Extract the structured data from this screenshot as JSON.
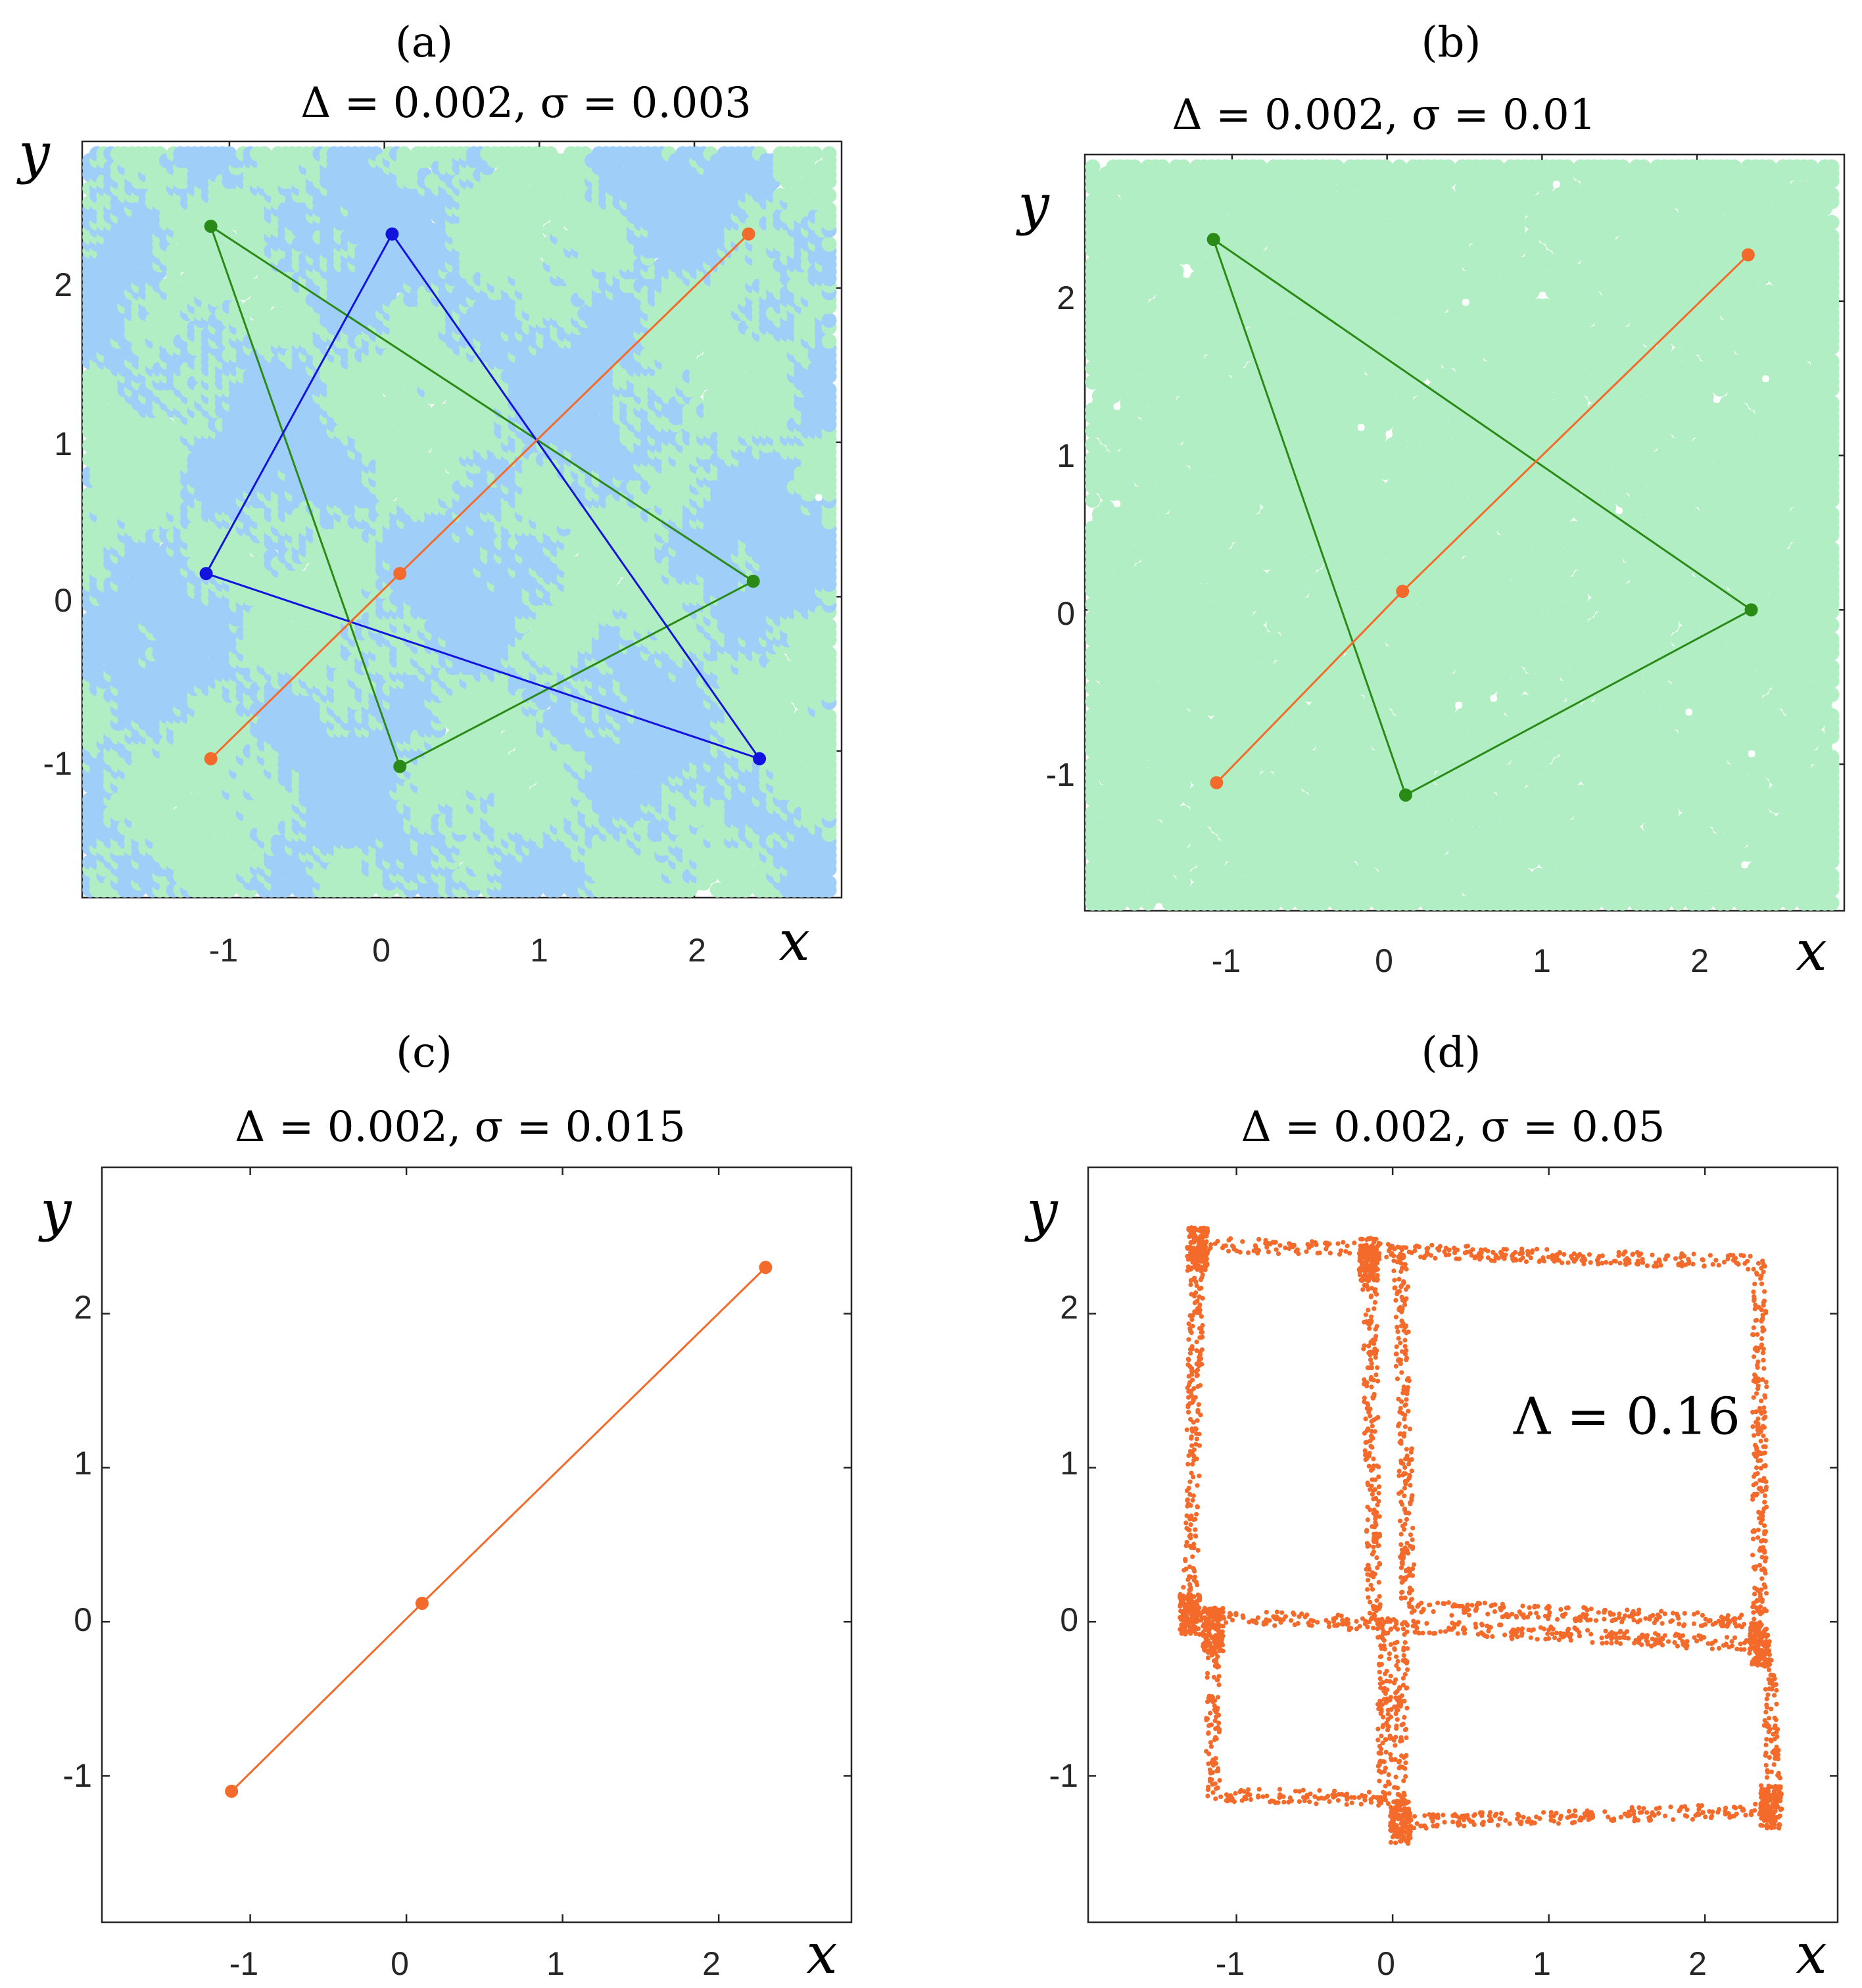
{
  "chart_data": [
    {
      "type": "scatter",
      "panel_label": "(a)",
      "title": "Δ = 0.002,  σ = 0.003",
      "xlabel": "x",
      "ylabel": "y",
      "xlim": [
        -1.95,
        2.95
      ],
      "ylim": [
        -1.95,
        2.95
      ],
      "xticks": [
        "-1",
        "0",
        "1",
        "2"
      ],
      "yticks": [
        "-1",
        "0",
        "1",
        "2"
      ],
      "grid": false,
      "background_points": {
        "colors": [
          "#b2eec3",
          "#9fcff8"
        ],
        "density": 0.9,
        "seed": 7,
        "region": [
          -1.9,
          2.9,
          -1.9,
          2.9
        ]
      },
      "orbits": [
        {
          "color": "#2a8a16",
          "points": [
            [
              -1.12,
              2.4
            ],
            [
              2.38,
              0.1
            ],
            [
              0.1,
              -1.1
            ],
            [
              -1.12,
              2.4
            ]
          ]
        },
        {
          "color": "#1313e0",
          "points": [
            [
              0.05,
              2.35
            ],
            [
              2.42,
              -1.05
            ],
            [
              -1.15,
              0.15
            ],
            [
              0.05,
              2.35
            ]
          ]
        },
        {
          "color": "#f36a2a",
          "points": [
            [
              2.35,
              2.35
            ],
            [
              0.1,
              0.15
            ],
            [
              -1.12,
              -1.05
            ],
            [
              0.1,
              0.15
            ],
            [
              2.35,
              2.35
            ]
          ]
        }
      ],
      "annotation": null
    },
    {
      "type": "scatter",
      "panel_label": "(b)",
      "title": "Δ = 0.002,  σ = 0.01",
      "xlabel": "x",
      "ylabel": "y",
      "xlim": [
        -1.95,
        2.95
      ],
      "ylim": [
        -1.95,
        2.95
      ],
      "xticks": [
        "-1",
        "0",
        "1",
        "2"
      ],
      "yticks": [
        "-1",
        "0",
        "1",
        "2"
      ],
      "grid": false,
      "background_points": {
        "colors": [
          "#b2eec3"
        ],
        "density": 0.82,
        "seed": 13,
        "region": [
          -1.9,
          2.9,
          -1.9,
          2.9
        ]
      },
      "orbits": [
        {
          "color": "#2a8a16",
          "points": [
            [
              -1.12,
              2.4
            ],
            [
              2.35,
              0.0
            ],
            [
              0.12,
              -1.2
            ],
            [
              -1.12,
              2.4
            ]
          ]
        },
        {
          "color": "#f36a2a",
          "points": [
            [
              2.33,
              2.3
            ],
            [
              0.1,
              0.12
            ],
            [
              -1.1,
              -1.12
            ],
            [
              0.1,
              0.12
            ],
            [
              2.33,
              2.3
            ]
          ]
        }
      ],
      "annotation": null
    },
    {
      "type": "line",
      "panel_label": "(c)",
      "title": "Δ = 0.002,  σ = 0.015",
      "xlabel": "x",
      "ylabel": "y",
      "xlim": [
        -1.95,
        2.85
      ],
      "ylim": [
        -1.95,
        2.95
      ],
      "xticks": [
        "-1",
        "0",
        "1",
        "2"
      ],
      "yticks": [
        "-1",
        "0",
        "1",
        "2"
      ],
      "grid": false,
      "background_points": null,
      "orbits": [
        {
          "color": "#f36a2a",
          "points": [
            [
              2.3,
              2.3
            ],
            [
              0.1,
              0.12
            ],
            [
              -1.12,
              -1.1
            ],
            [
              0.1,
              0.12
            ],
            [
              2.3,
              2.3
            ]
          ]
        }
      ],
      "annotation": null
    },
    {
      "type": "scatter",
      "panel_label": "(d)",
      "title": "Δ = 0.002,  σ = 0.05",
      "xlabel": "x",
      "ylabel": "y",
      "xlim": [
        -1.95,
        2.85
      ],
      "ylim": [
        -1.95,
        2.95
      ],
      "xticks": [
        "-1",
        "0",
        "1",
        "2"
      ],
      "yticks": [
        "-1",
        "0",
        "1",
        "2"
      ],
      "grid": false,
      "background_points": null,
      "orbits": [],
      "noisy_attractor": {
        "color": "#f36a2a",
        "seed": 21,
        "edges": [
          [
            [
              -1.25,
              2.45
            ],
            [
              2.35,
              2.33
            ]
          ],
          [
            [
              -1.3,
              0.05
            ],
            [
              -1.25,
              2.45
            ]
          ],
          [
            [
              -1.3,
              0.05
            ],
            [
              2.35,
              -0.15
            ]
          ],
          [
            [
              2.35,
              -0.15
            ],
            [
              2.35,
              2.33
            ]
          ],
          [
            [
              -0.15,
              2.4
            ],
            [
              -0.12,
              0.0
            ]
          ],
          [
            [
              0.05,
              2.35
            ],
            [
              0.1,
              0.1
            ]
          ],
          [
            [
              0.1,
              0.1
            ],
            [
              2.3,
              0.0
            ]
          ],
          [
            [
              -1.15,
              -0.05
            ],
            [
              -1.15,
              -1.12
            ]
          ],
          [
            [
              -1.15,
              -1.12
            ],
            [
              -0.05,
              -1.15
            ]
          ],
          [
            [
              -0.05,
              -1.15
            ],
            [
              -0.05,
              0.0
            ]
          ],
          [
            [
              0.05,
              -1.3
            ],
            [
              2.45,
              -1.22
            ]
          ],
          [
            [
              2.45,
              -1.22
            ],
            [
              2.4,
              -0.2
            ]
          ],
          [
            [
              0.05,
              -1.3
            ],
            [
              0.05,
              -0.1
            ]
          ]
        ],
        "clusters": [
          [
            -1.25,
            2.42
          ],
          [
            -1.3,
            0.05
          ],
          [
            -0.15,
            2.35
          ],
          [
            2.42,
            -1.2
          ],
          [
            2.35,
            -0.15
          ],
          [
            0.05,
            -1.3
          ],
          [
            -1.15,
            -0.05
          ]
        ]
      },
      "annotation": "Λ = 0.16",
      "annotation_position": [
        1.5,
        1.22
      ]
    }
  ]
}
